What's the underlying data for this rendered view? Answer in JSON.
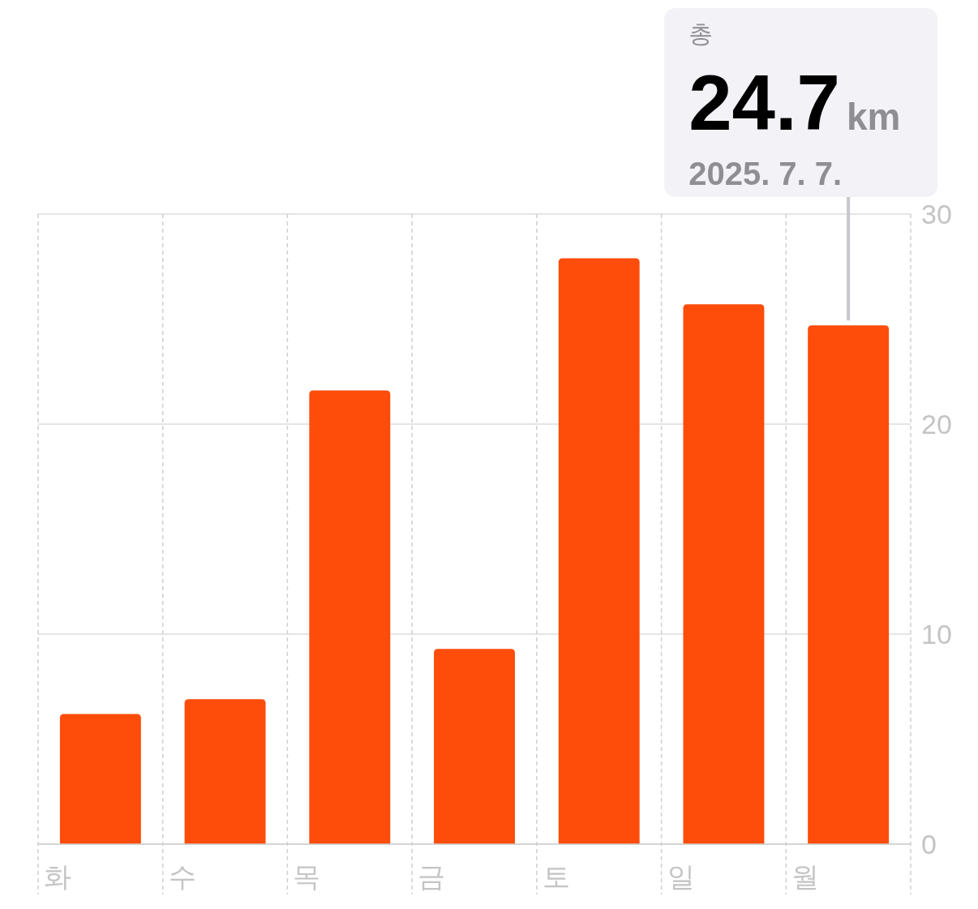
{
  "chart_data": {
    "type": "bar",
    "categories": [
      "화",
      "수",
      "목",
      "금",
      "토",
      "일",
      "월"
    ],
    "values": [
      6.2,
      6.9,
      21.6,
      9.3,
      27.9,
      25.7,
      24.7
    ],
    "color": "#fe4c0a",
    "ylim": [
      0,
      30
    ],
    "yticks": [
      0,
      10,
      20,
      30
    ],
    "grid": true,
    "annotations": [
      "총",
      {
        "text": "24.7",
        "x": "월",
        "y": 24.7
      },
      "km",
      "2025. 7. 7."
    ]
  }
}
